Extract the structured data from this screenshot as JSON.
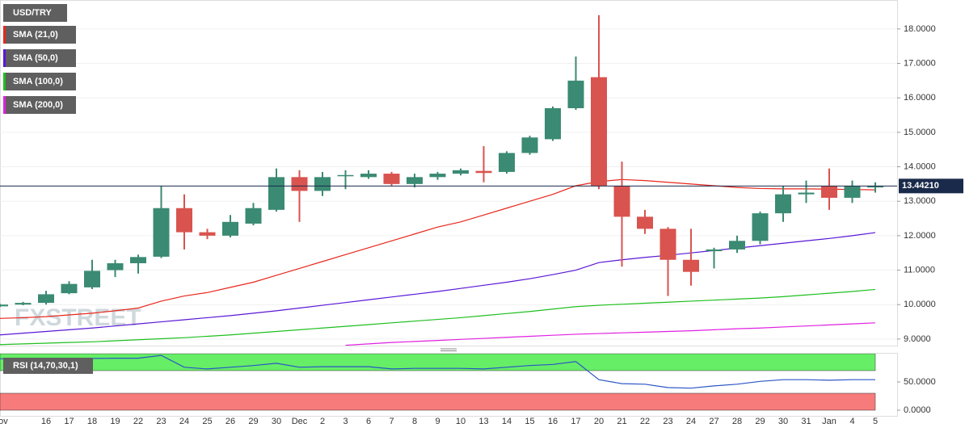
{
  "chart_data": [
    {
      "type": "candlestick",
      "symbol": "USD/TRY",
      "watermark": "FXSTREET",
      "categories": [
        "Nov",
        null,
        "16",
        "17",
        "18",
        "19",
        "22",
        "23",
        "24",
        "25",
        "26",
        "29",
        "30",
        "Dec",
        "2",
        "3",
        "6",
        "7",
        "8",
        "9",
        "10",
        "13",
        "14",
        "15",
        "16",
        "17",
        "20",
        "21",
        "22",
        "23",
        "24",
        "27",
        "28",
        "29",
        "30",
        "31",
        "Jan",
        "4",
        "5"
      ],
      "open": [
        9.95,
        10.0,
        10.05,
        10.33,
        10.5,
        11.0,
        11.2,
        11.39,
        12.8,
        12.1,
        12.0,
        12.35,
        12.75,
        13.7,
        13.3,
        13.74,
        13.7,
        13.8,
        13.5,
        13.7,
        13.8,
        13.88,
        13.85,
        14.4,
        14.8,
        15.7,
        16.6,
        13.45,
        12.55,
        12.2,
        11.3,
        11.55,
        11.6,
        11.85,
        12.65,
        13.2,
        13.45,
        13.1,
        13.4
      ],
      "high": [
        10.02,
        10.08,
        10.4,
        10.68,
        11.3,
        11.3,
        11.45,
        13.45,
        13.2,
        12.2,
        12.6,
        12.95,
        13.95,
        13.9,
        13.85,
        13.9,
        13.9,
        13.85,
        13.8,
        13.85,
        13.95,
        14.6,
        14.45,
        14.9,
        15.75,
        17.2,
        18.4,
        14.15,
        12.75,
        12.25,
        12.2,
        11.65,
        12.0,
        12.7,
        13.45,
        13.6,
        13.95,
        13.6,
        13.55
      ],
      "low": [
        9.93,
        9.98,
        10.0,
        10.3,
        10.45,
        10.8,
        10.9,
        11.35,
        11.6,
        11.9,
        11.95,
        12.3,
        12.7,
        12.4,
        13.15,
        13.35,
        13.65,
        13.45,
        13.4,
        13.62,
        13.75,
        13.55,
        13.8,
        14.35,
        14.75,
        15.65,
        13.35,
        11.1,
        12.05,
        10.25,
        10.55,
        11.05,
        11.5,
        11.75,
        12.4,
        12.95,
        12.75,
        12.95,
        13.25
      ],
      "close": [
        10.0,
        10.05,
        10.3,
        10.6,
        10.98,
        11.2,
        11.38,
        12.8,
        12.1,
        12.0,
        12.4,
        12.8,
        13.7,
        13.3,
        13.7,
        13.76,
        13.8,
        13.5,
        13.7,
        13.8,
        13.9,
        13.82,
        14.4,
        14.85,
        15.7,
        16.5,
        13.45,
        12.55,
        12.2,
        11.3,
        10.95,
        11.6,
        11.85,
        12.65,
        13.2,
        13.25,
        13.1,
        13.45,
        13.44
      ],
      "up_color": "#3b8a73",
      "down_color": "#d9534f",
      "overlays": [
        {
          "name": "SMA (21,0)",
          "color": "#e8271c",
          "values": [
            9.6,
            9.62,
            9.65,
            9.7,
            9.75,
            9.82,
            9.9,
            10.1,
            10.25,
            10.35,
            10.5,
            10.65,
            10.85,
            11.05,
            11.25,
            11.45,
            11.65,
            11.85,
            12.05,
            12.25,
            12.4,
            12.6,
            12.8,
            13.0,
            13.2,
            13.45,
            13.57,
            13.63,
            13.6,
            13.55,
            13.5,
            13.45,
            13.4,
            13.37,
            13.36,
            13.36,
            13.35,
            13.34,
            13.33
          ]
        },
        {
          "name": "SMA (50,0)",
          "color": "#5a17d6",
          "values": [
            9.12,
            9.17,
            9.22,
            9.27,
            9.32,
            9.38,
            9.44,
            9.5,
            9.56,
            9.62,
            9.68,
            9.75,
            9.82,
            9.9,
            9.98,
            10.06,
            10.14,
            10.22,
            10.3,
            10.38,
            10.47,
            10.56,
            10.65,
            10.75,
            10.87,
            11.0,
            11.22,
            11.3,
            11.37,
            11.43,
            11.5,
            11.57,
            11.64,
            11.71,
            11.78,
            11.85,
            11.92,
            12.0,
            12.09
          ]
        },
        {
          "name": "SMA (100,0)",
          "color": "#1fbf1f",
          "values": [
            8.84,
            8.86,
            8.88,
            8.9,
            8.92,
            8.95,
            8.98,
            9.01,
            9.04,
            9.08,
            9.12,
            9.17,
            9.22,
            9.27,
            9.32,
            9.37,
            9.42,
            9.47,
            9.52,
            9.57,
            9.62,
            9.68,
            9.74,
            9.8,
            9.87,
            9.94,
            9.98,
            10.01,
            10.04,
            10.07,
            10.1,
            10.13,
            10.16,
            10.19,
            10.23,
            10.28,
            10.33,
            10.38,
            10.44
          ]
        },
        {
          "name": "SMA (200,0)",
          "color": "#e020e0",
          "values": [
            null,
            null,
            null,
            null,
            null,
            null,
            null,
            null,
            null,
            null,
            null,
            null,
            null,
            null,
            null,
            8.82,
            8.86,
            8.9,
            8.93,
            8.96,
            8.99,
            9.02,
            9.05,
            9.08,
            9.11,
            9.14,
            9.16,
            9.18,
            9.2,
            9.22,
            9.24,
            9.27,
            9.3,
            9.32,
            9.35,
            9.38,
            9.41,
            9.44,
            9.47
          ]
        }
      ],
      "last_price": {
        "value": 13.4421,
        "label": "13.44210"
      },
      "ylim": [
        8.81,
        18.84
      ],
      "yticks": [
        {
          "value": 9,
          "label": "9.0000"
        },
        {
          "value": 10,
          "label": "10.0000"
        },
        {
          "value": 11,
          "label": "11.0000"
        },
        {
          "value": 12,
          "label": "12.0000"
        },
        {
          "value": 13,
          "label": "13.0000"
        },
        {
          "value": 14,
          "label": "14.0000"
        },
        {
          "value": 15,
          "label": "15.0000"
        },
        {
          "value": 16,
          "label": "16.0000"
        },
        {
          "value": 17,
          "label": "17.0000"
        },
        {
          "value": 18,
          "label": "18.0000"
        }
      ],
      "grid": true
    },
    {
      "type": "line",
      "series": [
        {
          "name": "RSI (14,70,30,1)",
          "color": "#2a56c6",
          "values": [
            91,
            91,
            91,
            91.5,
            91.5,
            92,
            92,
            97,
            76,
            73,
            76,
            79,
            83,
            76,
            77,
            77,
            77,
            73,
            74,
            74,
            74,
            73,
            76,
            79,
            81,
            86,
            54,
            47,
            46,
            40,
            39,
            43,
            46,
            51,
            54,
            54,
            53,
            54,
            54
          ]
        }
      ],
      "bands": [
        {
          "from": 70,
          "to": 100,
          "color": "#66ee66"
        },
        {
          "from": 0,
          "to": 30,
          "color": "#f77b7b"
        }
      ],
      "ylim": [
        -10,
        100
      ],
      "yticks": [
        {
          "value": 0,
          "label": "0.0000"
        },
        {
          "value": 50,
          "label": "50.0000"
        }
      ]
    }
  ]
}
